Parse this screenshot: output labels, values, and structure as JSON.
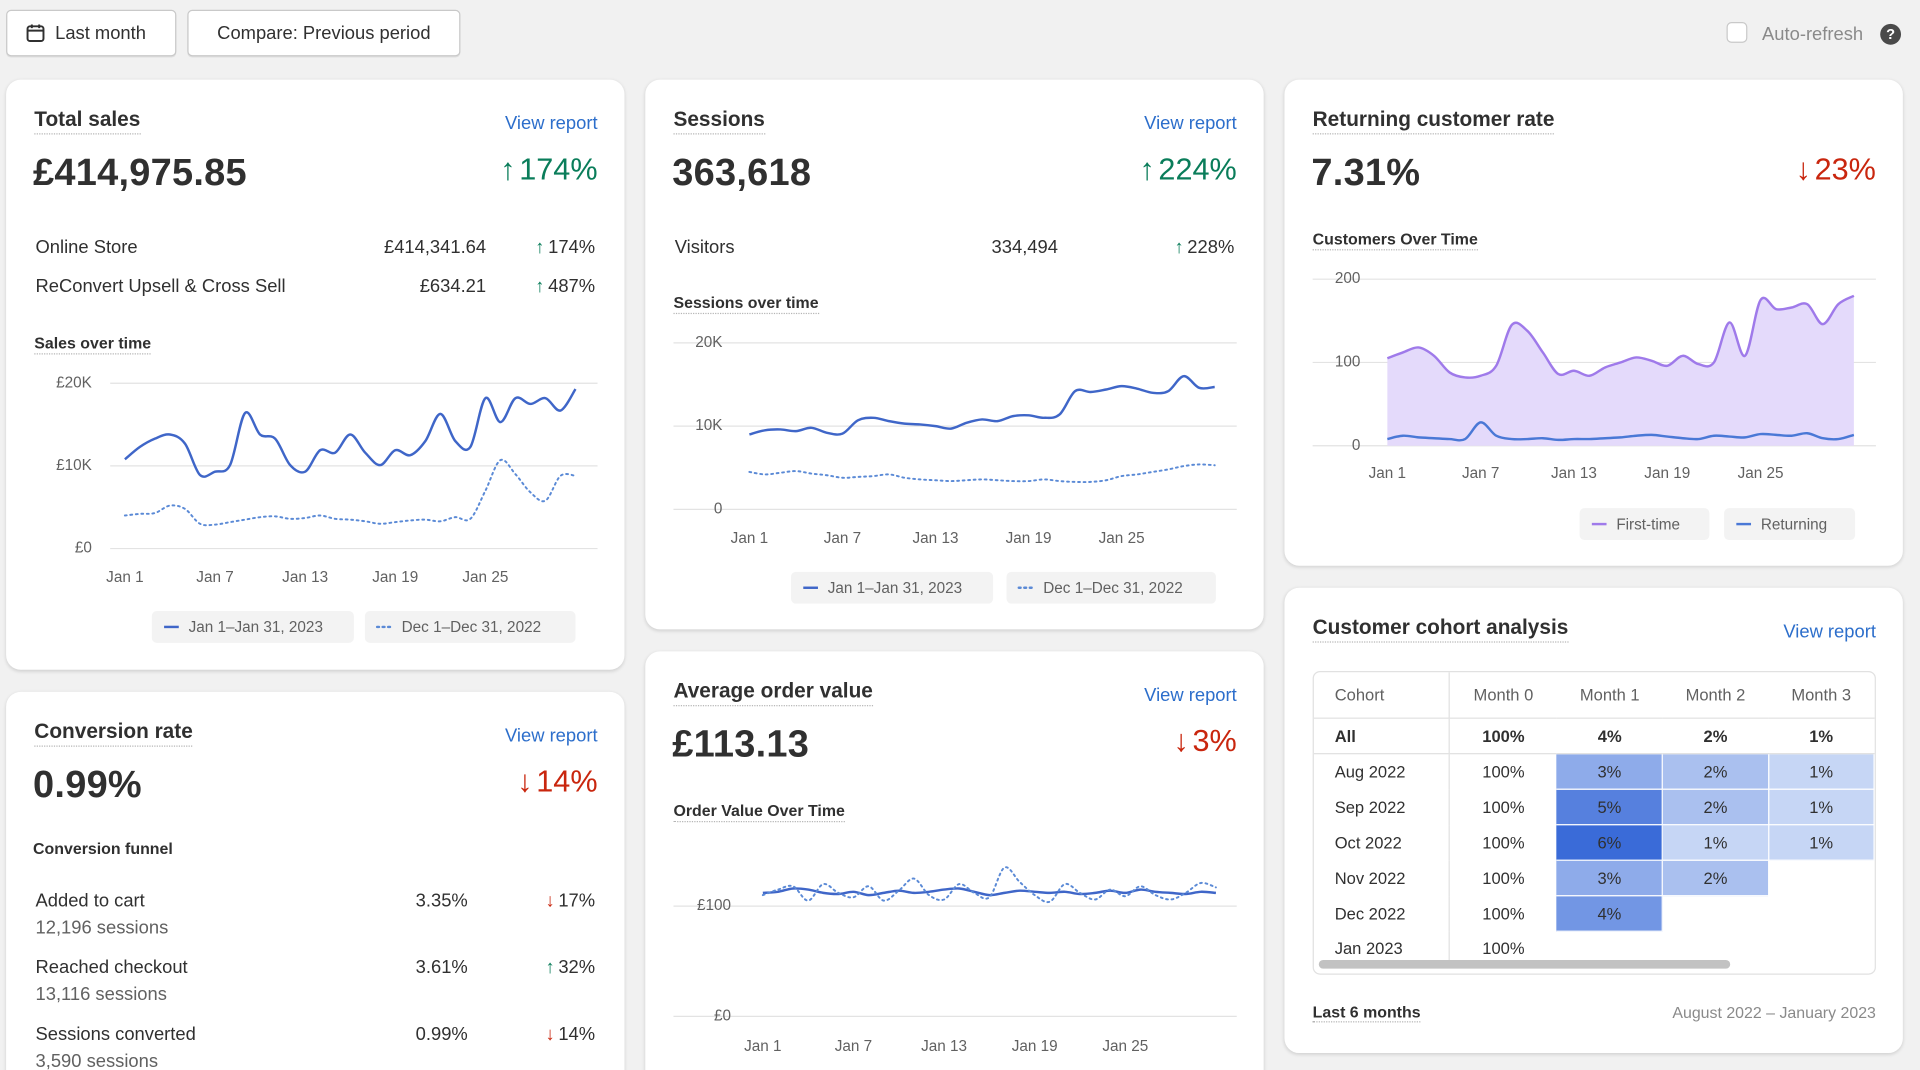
{
  "toolbar": {
    "date_button": "Last month",
    "compare_button": "Compare: Previous period",
    "auto_refresh": "Auto-refresh"
  },
  "cards": {
    "total_sales": {
      "title": "Total sales",
      "link": "View report",
      "value": "£414,975.85",
      "change": "174%",
      "direction": "up",
      "breakdown": [
        {
          "label": "Online Store",
          "value": "£414,341.64",
          "change": "174%",
          "direction": "up"
        },
        {
          "label": "ReConvert Upsell & Cross Sell",
          "value": "£634.21",
          "change": "487%",
          "direction": "up"
        }
      ]
    },
    "sessions": {
      "title": "Sessions",
      "link": "View report",
      "value": "363,618",
      "change": "224%",
      "direction": "up",
      "breakdown": [
        {
          "label": "Visitors",
          "value": "334,494",
          "change": "228%",
          "direction": "up"
        }
      ]
    },
    "returning_customer_rate": {
      "title": "Returning customer rate",
      "value": "7.31%",
      "change": "23%",
      "direction": "down"
    },
    "conversion_rate": {
      "title": "Conversion rate",
      "link": "View report",
      "value": "0.99%",
      "change": "14%",
      "direction": "down",
      "funnel_title": "Conversion funnel",
      "funnel": [
        {
          "label": "Added to cart",
          "sessions": "12,196 sessions",
          "rate": "3.35%",
          "change": "17%",
          "direction": "down"
        },
        {
          "label": "Reached checkout",
          "sessions": "13,116 sessions",
          "rate": "3.61%",
          "change": "32%",
          "direction": "up"
        },
        {
          "label": "Sessions converted",
          "sessions": "3,590 sessions",
          "rate": "0.99%",
          "change": "14%",
          "direction": "down"
        }
      ]
    },
    "average_order_value": {
      "title": "Average order value",
      "link": "View report",
      "value": "£113.13",
      "change": "3%",
      "direction": "down"
    },
    "cohort": {
      "title": "Customer cohort analysis",
      "link": "View report",
      "columns": [
        "Cohort",
        "Month 0",
        "Month 1",
        "Month 2",
        "Month 3"
      ],
      "rows": [
        [
          "All",
          "100%",
          "4%",
          "2%",
          "1%"
        ],
        [
          "Aug 2022",
          "100%",
          "3%",
          "2%",
          "1%"
        ],
        [
          "Sep 2022",
          "100%",
          "5%",
          "2%",
          "1%"
        ],
        [
          "Oct 2022",
          "100%",
          "6%",
          "1%",
          "1%"
        ],
        [
          "Nov 2022",
          "100%",
          "3%",
          "2%"
        ],
        [
          "Dec 2022",
          "100%",
          "4%"
        ],
        [
          "Jan 2023",
          "100%"
        ]
      ],
      "footer_label": "Last 6 months",
      "footer_range": "August 2022 – January 2023"
    }
  },
  "chart_data": [
    {
      "type": "line",
      "title": "Sales over time",
      "categories": [
        "Jan 1",
        null,
        null,
        null,
        null,
        null,
        "Jan 7",
        null,
        null,
        null,
        null,
        null,
        "Jan 13",
        null,
        null,
        null,
        null,
        null,
        "Jan 19",
        null,
        null,
        null,
        null,
        null,
        "Jan 25",
        null,
        null,
        null,
        null,
        null,
        null
      ],
      "ylim": [
        0,
        20000
      ],
      "yticks": [
        {
          "value": 0,
          "label": "£0"
        },
        {
          "value": 10000,
          "label": "£10K"
        },
        {
          "value": 20000,
          "label": "£20K"
        }
      ],
      "grid": true,
      "series": [
        {
          "name": "Jan 1–Jan 31, 2023",
          "color": "#3f66c8",
          "style": "solid",
          "values": [
            10800,
            12300,
            13300,
            13800,
            12700,
            8900,
            9300,
            10100,
            16400,
            13800,
            13300,
            10100,
            9300,
            11900,
            11600,
            13800,
            11600,
            10100,
            11900,
            11300,
            13000,
            16300,
            13000,
            12300,
            18200,
            15300,
            18200,
            17500,
            18200,
            16700,
            19300
          ]
        },
        {
          "name": "Dec 1–Dec 31, 2022",
          "color": "#5b8ad6",
          "style": "dotted",
          "values": [
            4000,
            4200,
            4300,
            5200,
            4800,
            3000,
            2900,
            3200,
            3500,
            3800,
            3900,
            3600,
            3700,
            4000,
            3600,
            3500,
            3300,
            3000,
            3200,
            3400,
            3500,
            3300,
            3800,
            3600,
            7000,
            10700,
            9000,
            6800,
            5800,
            8800,
            8800
          ]
        }
      ]
    },
    {
      "type": "line",
      "title": "Sessions over time",
      "categories": [
        "Jan 1",
        null,
        null,
        null,
        null,
        null,
        "Jan 7",
        null,
        null,
        null,
        null,
        null,
        "Jan 13",
        null,
        null,
        null,
        null,
        null,
        "Jan 19",
        null,
        null,
        null,
        null,
        null,
        "Jan 25",
        null,
        null,
        null,
        null,
        null,
        null
      ],
      "ylim": [
        0,
        20000
      ],
      "yticks": [
        0,
        {
          "value": 10000,
          "label": "10K"
        },
        {
          "value": 20000,
          "label": "20K"
        }
      ],
      "grid": true,
      "series": [
        {
          "name": "Jan 1–Jan 31, 2023",
          "color": "#3f66c8",
          "style": "solid",
          "values": [
            9000,
            9500,
            9600,
            9400,
            9800,
            9200,
            9100,
            10700,
            11000,
            10600,
            10300,
            10200,
            10000,
            9700,
            10400,
            10800,
            10600,
            11200,
            11300,
            11000,
            11400,
            14200,
            14100,
            14400,
            14800,
            14500,
            14000,
            14200,
            16000,
            14600,
            14700
          ]
        },
        {
          "name": "Dec 1–Dec 31, 2022",
          "color": "#5b8ad6",
          "style": "dotted",
          "values": [
            4500,
            4200,
            4400,
            4600,
            4300,
            4100,
            3800,
            3900,
            4000,
            4200,
            3800,
            3600,
            3500,
            3400,
            3500,
            3600,
            3500,
            3400,
            3400,
            3600,
            3400,
            3300,
            3300,
            3500,
            4000,
            4200,
            4500,
            4800,
            5200,
            5400,
            5300
          ]
        }
      ]
    },
    {
      "type": "area",
      "title": "Customers Over Time",
      "categories": [
        "Jan 1",
        null,
        null,
        null,
        null,
        null,
        "Jan 7",
        null,
        null,
        null,
        null,
        null,
        "Jan 13",
        null,
        null,
        null,
        null,
        null,
        "Jan 19",
        null,
        null,
        null,
        null,
        null,
        "Jan 25",
        null,
        null,
        null,
        null,
        null,
        null
      ],
      "ylim": [
        0,
        200
      ],
      "yticks": [
        0,
        100,
        200
      ],
      "grid": true,
      "series": [
        {
          "name": "First-time",
          "color": "#9f7aea",
          "fill": "#e4dafb",
          "style": "solid",
          "values": [
            105,
            112,
            118,
            108,
            88,
            82,
            84,
            96,
            145,
            138,
            112,
            86,
            90,
            84,
            94,
            100,
            106,
            102,
            96,
            108,
            98,
            100,
            148,
            108,
            175,
            164,
            166,
            170,
            146,
            170,
            180
          ]
        },
        {
          "name": "Returning",
          "color": "#4a78d6",
          "style": "solid",
          "values": [
            8,
            12,
            10,
            9,
            8,
            8,
            28,
            12,
            8,
            8,
            9,
            7,
            8,
            8,
            9,
            10,
            12,
            13,
            11,
            9,
            8,
            12,
            11,
            10,
            14,
            13,
            12,
            15,
            9,
            8,
            13
          ]
        }
      ]
    },
    {
      "type": "line",
      "title": "Order Value Over Time",
      "categories": [
        "Jan 1",
        null,
        null,
        null,
        null,
        null,
        "Jan 7",
        null,
        null,
        null,
        null,
        null,
        "Jan 13",
        null,
        null,
        null,
        null,
        null,
        "Jan 19",
        null,
        null,
        null,
        null,
        null,
        "Jan 25",
        null,
        null,
        null,
        null,
        null,
        null
      ],
      "ylim": [
        0,
        150
      ],
      "yticks": [
        {
          "value": 0,
          "label": "£0"
        },
        {
          "value": 100,
          "label": "£100"
        }
      ],
      "grid": true,
      "series": [
        {
          "name": "Jan 1–Jan 31, 2023",
          "color": "#3f66c8",
          "style": "solid",
          "values": [
            112,
            113,
            116,
            115,
            112,
            111,
            113,
            110,
            112,
            114,
            112,
            113,
            115,
            116,
            113,
            110,
            112,
            114,
            113,
            112,
            113,
            111,
            112,
            114,
            112,
            115,
            113,
            112,
            111,
            113,
            112
          ]
        },
        {
          "name": "Dec 1–Dec 31, 2022",
          "color": "#5b8ad6",
          "style": "dotted",
          "values": [
            110,
            115,
            118,
            105,
            120,
            112,
            108,
            118,
            105,
            114,
            125,
            110,
            106,
            120,
            112,
            108,
            135,
            122,
            110,
            104,
            120,
            112,
            106,
            115,
            109,
            118,
            110,
            106,
            112,
            121,
            117
          ]
        }
      ]
    }
  ]
}
